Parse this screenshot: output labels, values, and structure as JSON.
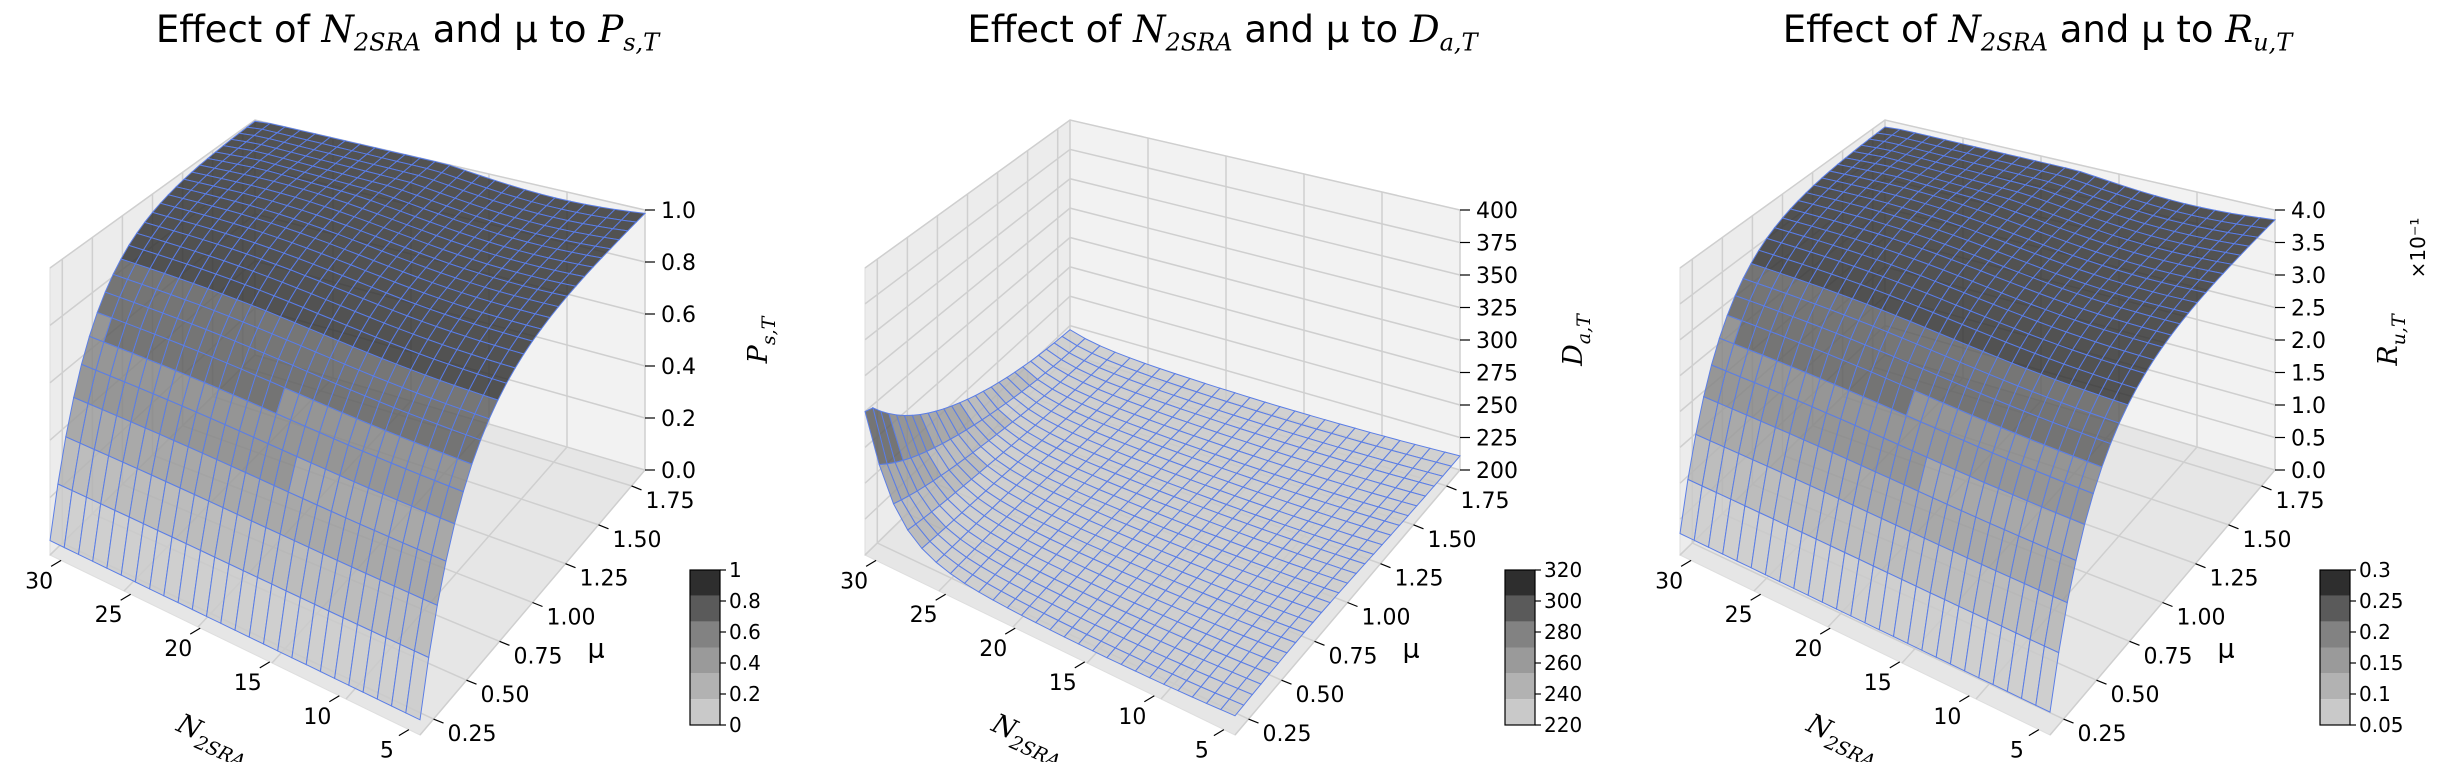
{
  "chart_data": [
    {
      "type": "surface3d",
      "title": {
        "prefix": "Effect of ",
        "var": "N",
        "var_sub": "2SRA",
        "mid": " and μ to ",
        "target": "P",
        "target_sub": "s,T"
      },
      "xlabel": "N_2SRA",
      "ylabel": "μ",
      "zlabel": "P_{s,T}",
      "x_ticks": [
        "30",
        "25",
        "20",
        "15",
        "10",
        "5"
      ],
      "y_ticks": [
        "0.25",
        "0.50",
        "0.75",
        "1.00",
        "1.25",
        "1.50",
        "1.75"
      ],
      "z_ticks": [
        "0.0",
        "0.2",
        "0.4",
        "0.6",
        "0.8",
        "1.0"
      ],
      "zlim": [
        0,
        1.0
      ],
      "x_range": [
        5,
        30
      ],
      "y_range": [
        0.25,
        1.75
      ],
      "surface_shape": "saturating",
      "z_low": 0.05,
      "z_high": 1.0,
      "grid": true,
      "colorbar_ticks": [
        "0",
        "0.2",
        "0.4",
        "0.6",
        "0.8",
        "1"
      ],
      "colorbar_colors": [
        "#c9c9c9",
        "#b2b2b2",
        "#9a9a9a",
        "#828282",
        "#5a5a5a",
        "#2e2e2e"
      ],
      "wire_color": "#5b7ee6",
      "offset_label": ""
    },
    {
      "type": "surface3d",
      "title": {
        "prefix": "Effect of ",
        "var": "N",
        "var_sub": "2SRA",
        "mid": " and μ to ",
        "target": "D",
        "target_sub": "a,T"
      },
      "xlabel": "N_2SRA",
      "ylabel": "μ",
      "zlabel": "D_{a,T}",
      "x_ticks": [
        "30",
        "25",
        "20",
        "15",
        "10",
        "5"
      ],
      "y_ticks": [
        "0.25",
        "0.50",
        "0.75",
        "1.00",
        "1.25",
        "1.50",
        "1.75"
      ],
      "z_ticks": [
        "200",
        "225",
        "250",
        "275",
        "300",
        "325",
        "350",
        "375",
        "400"
      ],
      "zlim": [
        200,
        400
      ],
      "x_range": [
        5,
        30
      ],
      "y_range": [
        0.25,
        1.75
      ],
      "surface_shape": "valley",
      "z_low": 210,
      "z_high": 300,
      "grid": true,
      "colorbar_ticks": [
        "220",
        "240",
        "260",
        "280",
        "300",
        "320"
      ],
      "colorbar_colors": [
        "#c9c9c9",
        "#b2b2b2",
        "#9a9a9a",
        "#828282",
        "#5a5a5a",
        "#2e2e2e"
      ],
      "wire_color": "#5b7ee6",
      "offset_label": ""
    },
    {
      "type": "surface3d",
      "title": {
        "prefix": "Effect of ",
        "var": "N",
        "var_sub": "2SRA",
        "mid": " and μ to ",
        "target": "R",
        "target_sub": "u,T"
      },
      "xlabel": "N_2SRA",
      "ylabel": "μ",
      "zlabel": "R_{u,T}",
      "x_ticks": [
        "30",
        "25",
        "20",
        "15",
        "10",
        "5"
      ],
      "y_ticks": [
        "0.25",
        "0.50",
        "0.75",
        "1.00",
        "1.25",
        "1.50",
        "1.75"
      ],
      "z_ticks": [
        "0.0",
        "0.5",
        "1.0",
        "1.5",
        "2.0",
        "2.5",
        "3.0",
        "3.5",
        "4.0"
      ],
      "zlim": [
        0,
        4.0
      ],
      "x_range": [
        5,
        30
      ],
      "y_range": [
        0.25,
        1.75
      ],
      "surface_shape": "saturating",
      "z_low": 0.3,
      "z_high": 3.9,
      "grid": true,
      "colorbar_ticks": [
        "0.05",
        "0.1",
        "0.15",
        "0.2",
        "0.25",
        "0.3"
      ],
      "colorbar_colors": [
        "#c9c9c9",
        "#b2b2b2",
        "#9a9a9a",
        "#828282",
        "#5a5a5a",
        "#2e2e2e"
      ],
      "wire_color": "#5b7ee6",
      "offset_label": "×10⁻¹"
    }
  ]
}
